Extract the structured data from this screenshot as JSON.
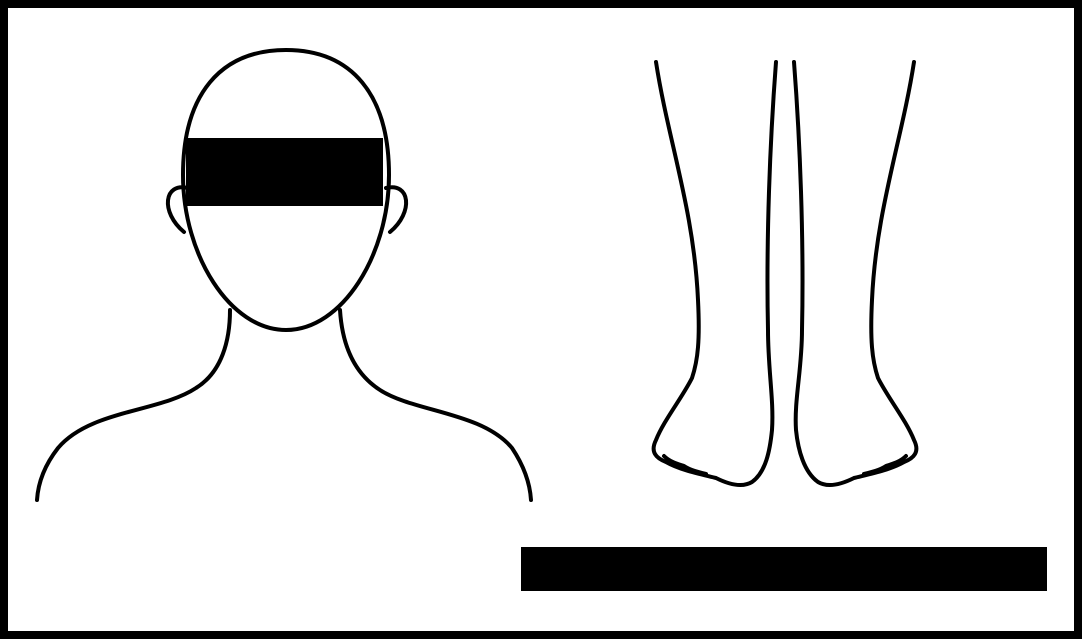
{
  "figure": {
    "border_color": "#000000",
    "background_color": "#ffffff",
    "line_color": "#000000",
    "redaction_color": "#000000",
    "panels": [
      {
        "id": "head-and-shoulders-figure",
        "icon": "head-shoulders-outline"
      },
      {
        "id": "lower-legs-feet-figure",
        "icon": "legs-feet-outline"
      }
    ],
    "redactions": [
      {
        "id": "eye-censor-bar"
      },
      {
        "id": "caption-redaction-bar"
      }
    ]
  }
}
